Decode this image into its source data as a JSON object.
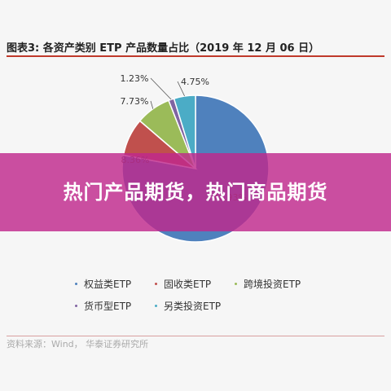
{
  "figure": {
    "title": "图表3:  各资产类别 ETP 产品数量占比（2019 年 12 月 06 日）",
    "source": "资料来源：Wind， 华泰证券研究所"
  },
  "banner": {
    "text": "热门产品期货，热门商品期货"
  },
  "chart_data": {
    "type": "pie",
    "title": "图表3:  各资产类别 ETP 产品数量占比（2019 年 12 月 06 日）",
    "categories": [
      "权益类ETP",
      "固收类ETP",
      "跨境投资ETP",
      "货币型ETP",
      "另类投资ETP"
    ],
    "values": [
      77.93,
      8.36,
      7.73,
      1.23,
      4.75
    ],
    "labels": [
      "77.93%",
      "8.36%",
      "7.73%",
      "1.23%",
      "4.75%"
    ],
    "colors": [
      "#4f81bd",
      "#c0504d",
      "#9bbb59",
      "#8064a2",
      "#4bacc6"
    ],
    "legend_position": "bottom"
  }
}
